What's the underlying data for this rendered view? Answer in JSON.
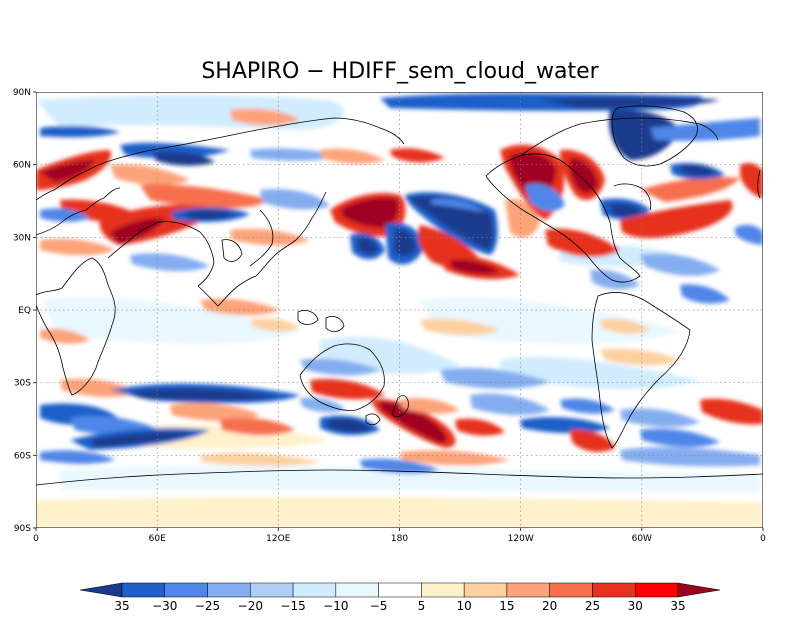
{
  "title": "SHAPIRO − HDIFF_sem_cloud_water",
  "map": {
    "lat_ticks": [
      "90N",
      "60N",
      "30N",
      "EQ",
      "30S",
      "60S",
      "90S"
    ],
    "lon_ticks": [
      "0",
      "60E",
      "12OE",
      "180",
      "120W",
      "60W",
      "0"
    ],
    "grid": "dotted",
    "projection": "cylindrical equidistant",
    "ocean_color": "#ffffff",
    "coast_color": "#000000"
  },
  "colorbar": {
    "labels": [
      "35",
      "−30",
      "−25",
      "−20",
      "−15",
      "−10",
      "−5",
      "5",
      "10",
      "15",
      "20",
      "25",
      "30",
      "35"
    ],
    "colors": [
      "#1a3a8c",
      "#1f5fc9",
      "#4f86e8",
      "#84adf0",
      "#aed0f7",
      "#d2ecff",
      "#e9f8ff",
      "#ffffff",
      "#fff1cc",
      "#fdd0a0",
      "#fca37a",
      "#f6704d",
      "#e6321f",
      "#ff0000",
      "#a00020"
    ]
  }
}
